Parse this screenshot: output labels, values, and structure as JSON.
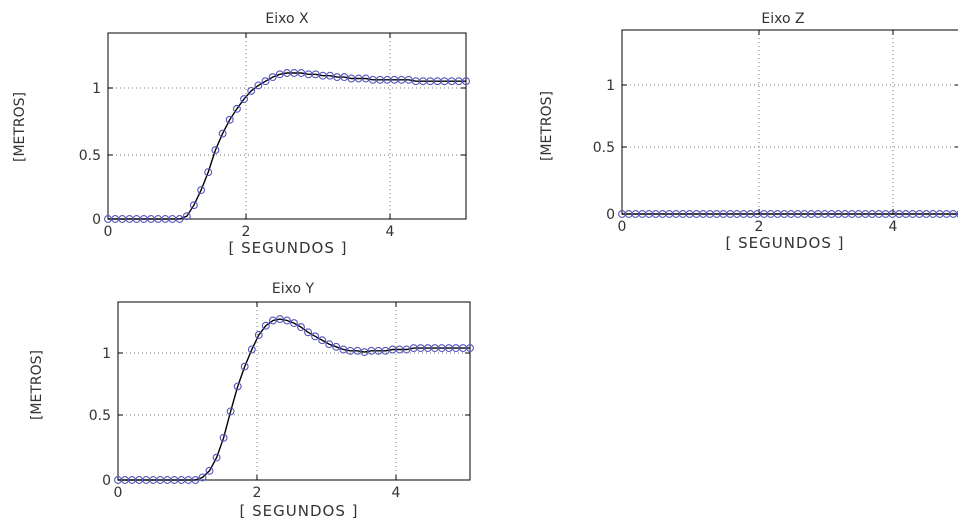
{
  "chart_data": [
    {
      "type": "line",
      "title": "Eixo X",
      "xlabel": "[ SEGUNDOS ]",
      "ylabel": "[METROS]",
      "xlim": [
        0,
        5
      ],
      "ylim": [
        0,
        1.35
      ],
      "xticks": [
        "0",
        "2",
        "4"
      ],
      "yticks": [
        "0",
        "0.5",
        "1"
      ],
      "grid": true,
      "line_color": "#000000",
      "marker_color": "#5555bb",
      "marker": "circle",
      "x": [
        0,
        0.1,
        0.2,
        0.3,
        0.4,
        0.5,
        0.6,
        0.7,
        0.8,
        0.9,
        1.0,
        1.1,
        1.2,
        1.3,
        1.4,
        1.5,
        1.6,
        1.7,
        1.8,
        1.9,
        2.0,
        2.1,
        2.2,
        2.3,
        2.4,
        2.5,
        2.6,
        2.7,
        2.8,
        2.9,
        3.0,
        3.1,
        3.2,
        3.3,
        3.4,
        3.5,
        3.6,
        3.7,
        3.8,
        3.9,
        4.0,
        4.1,
        4.2,
        4.3,
        4.4,
        4.5,
        4.6,
        4.7,
        4.8,
        4.9,
        5.0
      ],
      "y": [
        0,
        0,
        0,
        0,
        0,
        0,
        0,
        0,
        0,
        0,
        0,
        0.02,
        0.1,
        0.21,
        0.34,
        0.5,
        0.62,
        0.72,
        0.8,
        0.87,
        0.93,
        0.97,
        1.0,
        1.03,
        1.05,
        1.06,
        1.06,
        1.06,
        1.05,
        1.05,
        1.04,
        1.04,
        1.03,
        1.03,
        1.02,
        1.02,
        1.02,
        1.01,
        1.01,
        1.01,
        1.01,
        1.01,
        1.01,
        1.0,
        1.0,
        1.0,
        1.0,
        1.0,
        1.0,
        1.0,
        1.0
      ]
    },
    {
      "type": "line",
      "title": "Eixo Z",
      "xlabel": "[ SEGUNDOS ]",
      "ylabel": "[METROS]",
      "xlim": [
        0,
        5
      ],
      "ylim": [
        0,
        1.35
      ],
      "xticks": [
        "0",
        "2",
        "4"
      ],
      "yticks": [
        "0",
        "0.5",
        "1"
      ],
      "grid": true,
      "line_color": "#000000",
      "marker_color": "#5555bb",
      "marker": "circle",
      "x": [
        0,
        0.1,
        0.2,
        0.3,
        0.4,
        0.5,
        0.6,
        0.7,
        0.8,
        0.9,
        1.0,
        1.1,
        1.2,
        1.3,
        1.4,
        1.5,
        1.6,
        1.7,
        1.8,
        1.9,
        2.0,
        2.1,
        2.2,
        2.3,
        2.4,
        2.5,
        2.6,
        2.7,
        2.8,
        2.9,
        3.0,
        3.1,
        3.2,
        3.3,
        3.4,
        3.5,
        3.6,
        3.7,
        3.8,
        3.9,
        4.0,
        4.1,
        4.2,
        4.3,
        4.4,
        4.5,
        4.6,
        4.7,
        4.8,
        4.9,
        5.0
      ],
      "y": [
        0,
        0,
        0,
        0,
        0,
        0,
        0,
        0,
        0,
        0,
        0,
        0,
        0,
        0,
        0,
        0,
        0,
        0,
        0,
        0,
        0,
        0,
        0,
        0,
        0,
        0,
        0,
        0,
        0,
        0,
        0,
        0,
        0,
        0,
        0,
        0,
        0,
        0,
        0,
        0,
        0,
        0,
        0,
        0,
        0,
        0,
        0,
        0,
        0,
        0,
        0
      ]
    },
    {
      "type": "line",
      "title": "Eixo Y",
      "xlabel": "[ SEGUNDOS ]",
      "ylabel": "[METROS]",
      "xlim": [
        0,
        5
      ],
      "ylim": [
        0,
        1.35
      ],
      "xticks": [
        "0",
        "2",
        "4"
      ],
      "yticks": [
        "0",
        "0.5",
        "1"
      ],
      "grid": true,
      "line_color": "#000000",
      "marker_color": "#5555bb",
      "marker": "circle",
      "x": [
        0,
        0.1,
        0.2,
        0.3,
        0.4,
        0.5,
        0.6,
        0.7,
        0.8,
        0.9,
        1.0,
        1.1,
        1.2,
        1.3,
        1.4,
        1.5,
        1.6,
        1.7,
        1.8,
        1.9,
        2.0,
        2.1,
        2.2,
        2.3,
        2.4,
        2.5,
        2.6,
        2.7,
        2.8,
        2.9,
        3.0,
        3.1,
        3.2,
        3.3,
        3.4,
        3.5,
        3.6,
        3.7,
        3.8,
        3.9,
        4.0,
        4.1,
        4.2,
        4.3,
        4.4,
        4.5,
        4.6,
        4.7,
        4.8,
        4.9,
        5.0
      ],
      "y": [
        0,
        0,
        0,
        0,
        0,
        0,
        0,
        0,
        0,
        0,
        0,
        0,
        0.02,
        0.07,
        0.17,
        0.32,
        0.52,
        0.71,
        0.86,
        0.99,
        1.1,
        1.17,
        1.21,
        1.22,
        1.21,
        1.19,
        1.16,
        1.12,
        1.09,
        1.06,
        1.03,
        1.01,
        0.99,
        0.98,
        0.98,
        0.97,
        0.98,
        0.98,
        0.98,
        0.99,
        0.99,
        0.99,
        1.0,
        1.0,
        1.0,
        1.0,
        1.0,
        1.0,
        1.0,
        1.0,
        1.0
      ]
    }
  ]
}
